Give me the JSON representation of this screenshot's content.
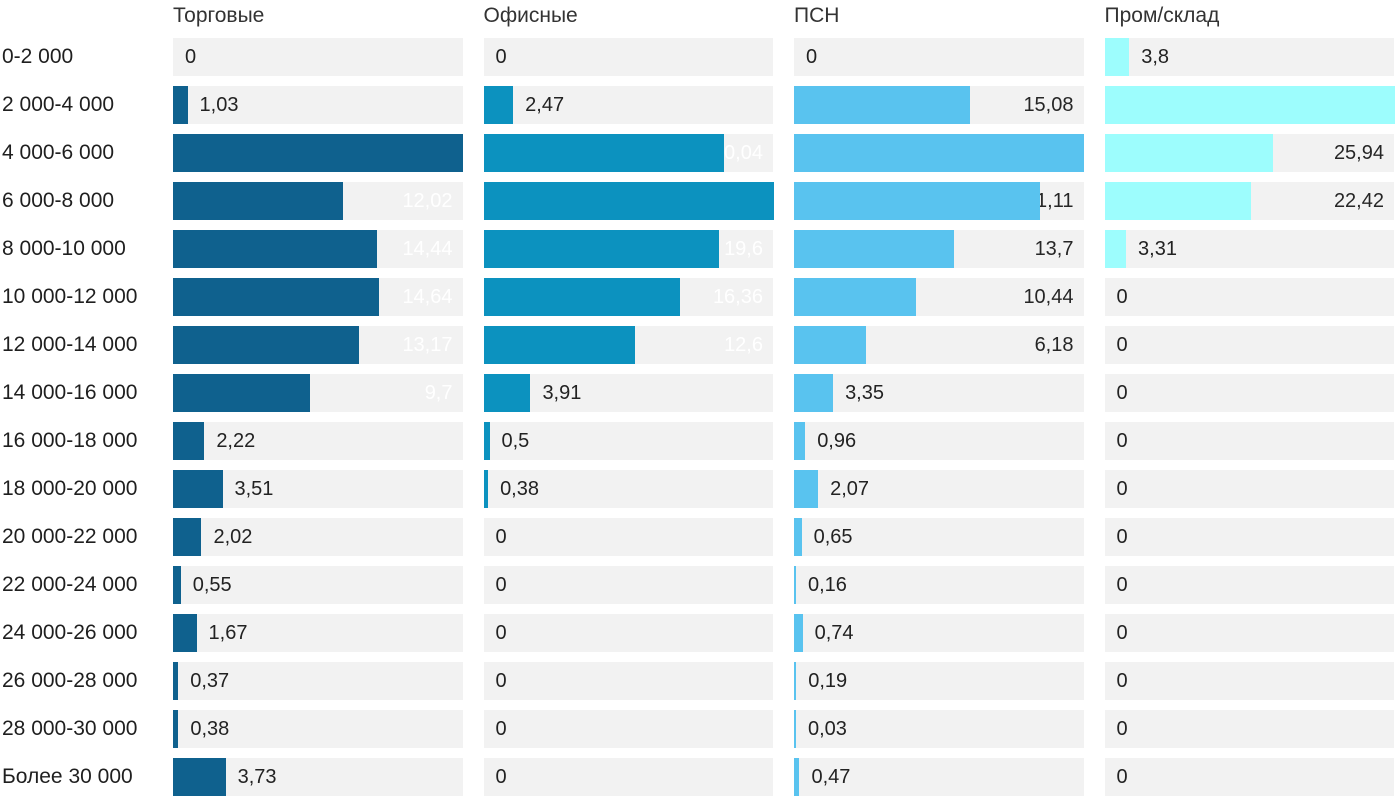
{
  "chart_data": {
    "type": "bar",
    "orientation": "horizontal",
    "layout": "small-multiples: one bar column per series, shared category rows, each column scaled to its own max value, gridless, gray track behind bars",
    "decimal_separator": ",",
    "track_color": "#f2f2f2",
    "text_color": "#222222",
    "categories": [
      "0-2 000",
      "2 000-4 000",
      "4 000-6 000",
      "6 000-8 000",
      "8 000-10 000",
      "10 000-12 000",
      "12 000-14 000",
      "14 000-16 000",
      "16 000-18 000",
      "18 000-20 000",
      "20 000-22 000",
      "22 000-24 000",
      "24 000-26 000",
      "26 000-28 000",
      "28 000-30 000",
      "Более 30 000"
    ],
    "series": [
      {
        "name": "Торговые",
        "color": "#0f618e",
        "label_inside_color": "#ffffff",
        "values": [
          0,
          1.03,
          20.56,
          12.02,
          14.44,
          14.64,
          13.17,
          9.7,
          2.22,
          3.51,
          2.02,
          0.55,
          1.67,
          0.37,
          0.38,
          3.73
        ]
      },
      {
        "name": "Офисные",
        "color": "#0c92bf",
        "label_inside_color": "#ffffff",
        "values": [
          0,
          2.47,
          20.04,
          24.15,
          19.6,
          16.36,
          12.6,
          3.91,
          0.5,
          0.38,
          0,
          0,
          0,
          0,
          0,
          0
        ]
      },
      {
        "name": "ПСН",
        "color": "#59c3ef",
        "label_inside_color": "#262626",
        "values": [
          0,
          15.08,
          24.87,
          21.11,
          13.7,
          10.44,
          6.18,
          3.35,
          0.96,
          2.07,
          0.65,
          0.16,
          0.74,
          0.19,
          0.03,
          0.47
        ]
      },
      {
        "name": "Пром/склад",
        "color": "#9dfdfd",
        "label_inside_color": "#262626",
        "values": [
          3.8,
          44.52,
          25.94,
          22.42,
          3.31,
          0,
          0,
          0,
          0,
          0,
          0,
          0,
          0,
          0,
          0,
          0
        ]
      }
    ]
  }
}
